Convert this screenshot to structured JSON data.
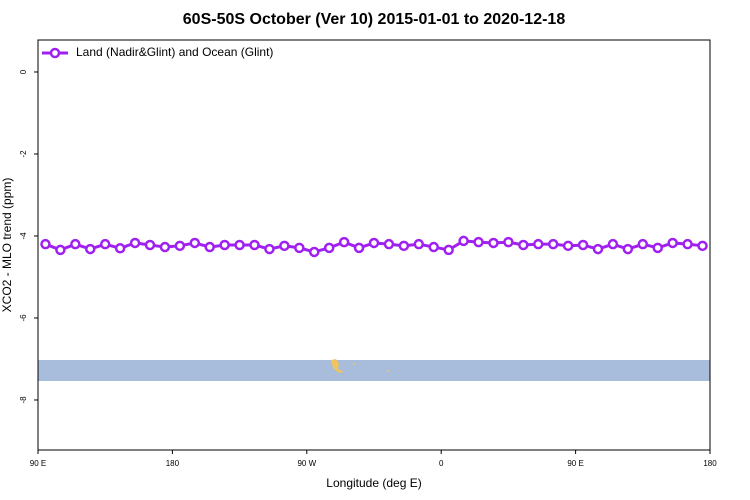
{
  "chart_data": {
    "type": "line",
    "title": "60S-50S October (Ver 10)   2015-01-01 to 2020-12-18",
    "xlabel": "Longitude (deg E)",
    "ylabel": "XCO2 - MLO trend (ppm)",
    "x": [
      95,
      105,
      115,
      125,
      135,
      145,
      155,
      165,
      175,
      185,
      195,
      205,
      215,
      225,
      235,
      245,
      255,
      265,
      275,
      285,
      295,
      305,
      315,
      325,
      335,
      345,
      355,
      365,
      375,
      385,
      395,
      405,
      415,
      425,
      435,
      445,
      455,
      465,
      475,
      485,
      495,
      505,
      515,
      525,
      535
    ],
    "series": [
      {
        "name": "Land (Nadir&Glint) and Ocean (Glint)",
        "color": "#a020f0",
        "values": [
          -4.2,
          -4.34,
          -4.2,
          -4.32,
          -4.2,
          -4.3,
          -4.17,
          -4.22,
          -4.27,
          -4.24,
          -4.17,
          -4.27,
          -4.22,
          -4.22,
          -4.22,
          -4.32,
          -4.24,
          -4.29,
          -4.39,
          -4.29,
          -4.15,
          -4.29,
          -4.17,
          -4.2,
          -4.24,
          -4.2,
          -4.27,
          -4.34,
          -4.12,
          -4.15,
          -4.17,
          -4.15,
          -4.22,
          -4.2,
          -4.2,
          -4.24,
          -4.22,
          -4.32,
          -4.2,
          -4.32,
          -4.2,
          -4.29,
          -4.17,
          -4.2,
          -4.24
        ]
      }
    ],
    "xlim": [
      90,
      540
    ],
    "xticks": [
      {
        "value": 90,
        "label": "90 E"
      },
      180,
      {
        "value": 270,
        "label": "90 W"
      },
      {
        "value": 360,
        "label": "0"
      },
      {
        "value": 450,
        "label": "90 E"
      },
      {
        "value": 540,
        "label": "180"
      }
    ],
    "ylim": [
      -9.22,
      0.78
    ],
    "yticks": [
      0,
      -2,
      -4,
      -6,
      -8
    ],
    "legend": "top-left"
  }
}
